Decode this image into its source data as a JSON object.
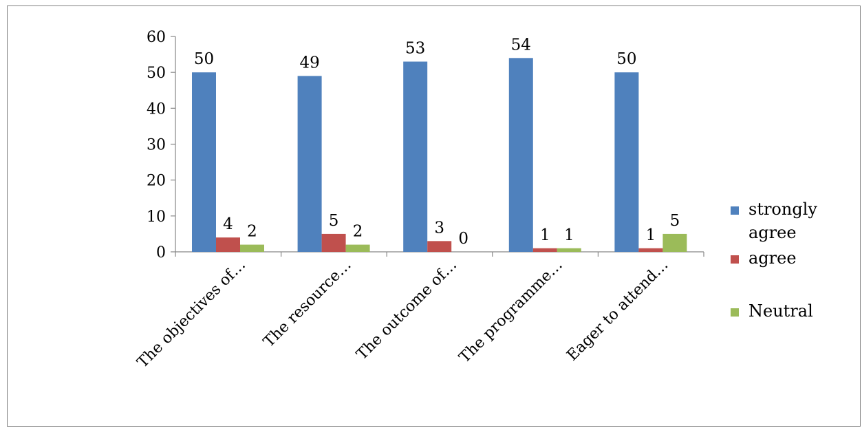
{
  "chart_data": {
    "type": "bar",
    "categories": [
      "The objectives of…",
      "The resource…",
      "The outcome of…",
      "The programme…",
      "Eager to attend…"
    ],
    "series": [
      {
        "name": "strongly agree",
        "color": "#4f81bd",
        "values": [
          50,
          49,
          53,
          54,
          50
        ]
      },
      {
        "name": "agree",
        "color": "#c0504d",
        "values": [
          4,
          5,
          3,
          1,
          1
        ]
      },
      {
        "name": "Neutral",
        "color": "#9bbb59",
        "values": [
          2,
          2,
          0,
          1,
          5
        ]
      }
    ],
    "ylim": [
      0,
      60
    ],
    "yticks": [
      0,
      10,
      20,
      30,
      40,
      50,
      60
    ],
    "grid": false,
    "legend_position": "right",
    "data_labels": true
  }
}
